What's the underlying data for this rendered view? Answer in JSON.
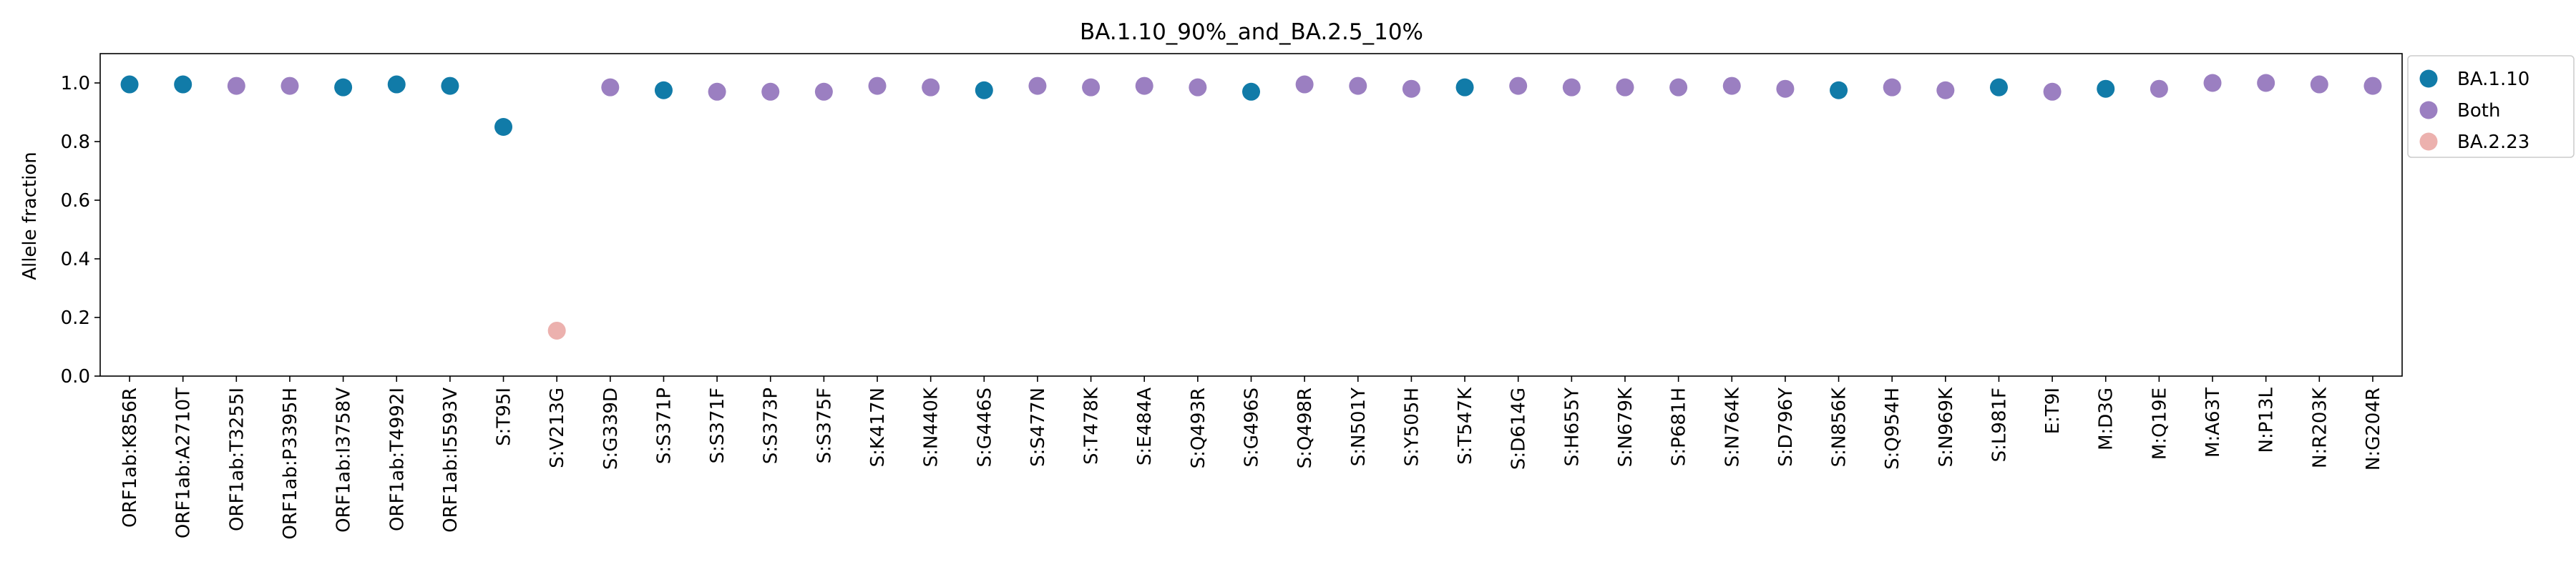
{
  "chart_data": {
    "type": "scatter",
    "title": "BA.1.10_90%_and_BA.2.5_10%",
    "xlabel": "",
    "ylabel": "Allele fraction",
    "ylim": [
      0.0,
      1.1
    ],
    "yticks": [
      "0.0",
      "0.2",
      "0.4",
      "0.6",
      "0.8",
      "1.0"
    ],
    "grid": false,
    "legend_position": "outside-top-right",
    "colors": {
      "BA.1.10": "#117ba8",
      "Both": "#9b7fc1",
      "BA.2.23": "#ecb1ae"
    },
    "series": [
      {
        "name": "BA.1.10"
      },
      {
        "name": "Both"
      },
      {
        "name": "BA.2.23"
      }
    ],
    "categories": [
      "ORF1ab:K856R",
      "ORF1ab:A2710T",
      "ORF1ab:T3255I",
      "ORF1ab:P3395H",
      "ORF1ab:I3758V",
      "ORF1ab:T4992I",
      "ORF1ab:I5593V",
      "S:T95I",
      "S:V213G",
      "S:G339D",
      "S:S371P",
      "S:S371F",
      "S:S373P",
      "S:S375F",
      "S:K417N",
      "S:N440K",
      "S:G446S",
      "S:S477N",
      "S:T478K",
      "S:E484A",
      "S:Q493R",
      "S:G496S",
      "S:Q498R",
      "S:N501Y",
      "S:Y505H",
      "S:T547K",
      "S:D614G",
      "S:H655Y",
      "S:N679K",
      "S:P681H",
      "S:N764K",
      "S:D796Y",
      "S:N856K",
      "S:Q954H",
      "S:N969K",
      "S:L981F",
      "E:T9I",
      "M:D3G",
      "M:Q19E",
      "M:A63T",
      "N:P13L",
      "N:R203K",
      "N:G204R"
    ],
    "points": [
      {
        "x": "ORF1ab:K856R",
        "y": 0.995,
        "group": "BA.1.10"
      },
      {
        "x": "ORF1ab:A2710T",
        "y": 0.995,
        "group": "BA.1.10"
      },
      {
        "x": "ORF1ab:T3255I",
        "y": 0.99,
        "group": "Both"
      },
      {
        "x": "ORF1ab:P3395H",
        "y": 0.99,
        "group": "Both"
      },
      {
        "x": "ORF1ab:I3758V",
        "y": 0.985,
        "group": "BA.1.10"
      },
      {
        "x": "ORF1ab:T4992I",
        "y": 0.995,
        "group": "BA.1.10"
      },
      {
        "x": "ORF1ab:I5593V",
        "y": 0.99,
        "group": "BA.1.10"
      },
      {
        "x": "S:T95I",
        "y": 0.85,
        "group": "BA.1.10"
      },
      {
        "x": "S:V213G",
        "y": 0.155,
        "group": "BA.2.23"
      },
      {
        "x": "S:G339D",
        "y": 0.985,
        "group": "Both"
      },
      {
        "x": "S:S371P",
        "y": 0.975,
        "group": "BA.1.10"
      },
      {
        "x": "S:S371F",
        "y": 0.97,
        "group": "Both"
      },
      {
        "x": "S:S373P",
        "y": 0.97,
        "group": "Both"
      },
      {
        "x": "S:S375F",
        "y": 0.97,
        "group": "Both"
      },
      {
        "x": "S:K417N",
        "y": 0.99,
        "group": "Both"
      },
      {
        "x": "S:N440K",
        "y": 0.985,
        "group": "Both"
      },
      {
        "x": "S:G446S",
        "y": 0.975,
        "group": "BA.1.10"
      },
      {
        "x": "S:S477N",
        "y": 0.99,
        "group": "Both"
      },
      {
        "x": "S:T478K",
        "y": 0.985,
        "group": "Both"
      },
      {
        "x": "S:E484A",
        "y": 0.99,
        "group": "Both"
      },
      {
        "x": "S:Q493R",
        "y": 0.985,
        "group": "Both"
      },
      {
        "x": "S:G496S",
        "y": 0.97,
        "group": "BA.1.10"
      },
      {
        "x": "S:Q498R",
        "y": 0.995,
        "group": "Both"
      },
      {
        "x": "S:N501Y",
        "y": 0.99,
        "group": "Both"
      },
      {
        "x": "S:Y505H",
        "y": 0.98,
        "group": "Both"
      },
      {
        "x": "S:T547K",
        "y": 0.985,
        "group": "BA.1.10"
      },
      {
        "x": "S:D614G",
        "y": 0.99,
        "group": "Both"
      },
      {
        "x": "S:H655Y",
        "y": 0.985,
        "group": "Both"
      },
      {
        "x": "S:N679K",
        "y": 0.985,
        "group": "Both"
      },
      {
        "x": "S:P681H",
        "y": 0.985,
        "group": "Both"
      },
      {
        "x": "S:N764K",
        "y": 0.99,
        "group": "Both"
      },
      {
        "x": "S:D796Y",
        "y": 0.98,
        "group": "Both"
      },
      {
        "x": "S:N856K",
        "y": 0.975,
        "group": "BA.1.10"
      },
      {
        "x": "S:Q954H",
        "y": 0.985,
        "group": "Both"
      },
      {
        "x": "S:N969K",
        "y": 0.975,
        "group": "Both"
      },
      {
        "x": "S:L981F",
        "y": 0.985,
        "group": "BA.1.10"
      },
      {
        "x": "E:T9I",
        "y": 0.97,
        "group": "Both"
      },
      {
        "x": "M:D3G",
        "y": 0.98,
        "group": "BA.1.10"
      },
      {
        "x": "M:Q19E",
        "y": 0.98,
        "group": "Both"
      },
      {
        "x": "M:A63T",
        "y": 1.0,
        "group": "Both"
      },
      {
        "x": "N:P13L",
        "y": 1.0,
        "group": "Both"
      },
      {
        "x": "N:R203K",
        "y": 0.995,
        "group": "Both"
      },
      {
        "x": "N:G204R",
        "y": 0.99,
        "group": "Both"
      }
    ]
  }
}
